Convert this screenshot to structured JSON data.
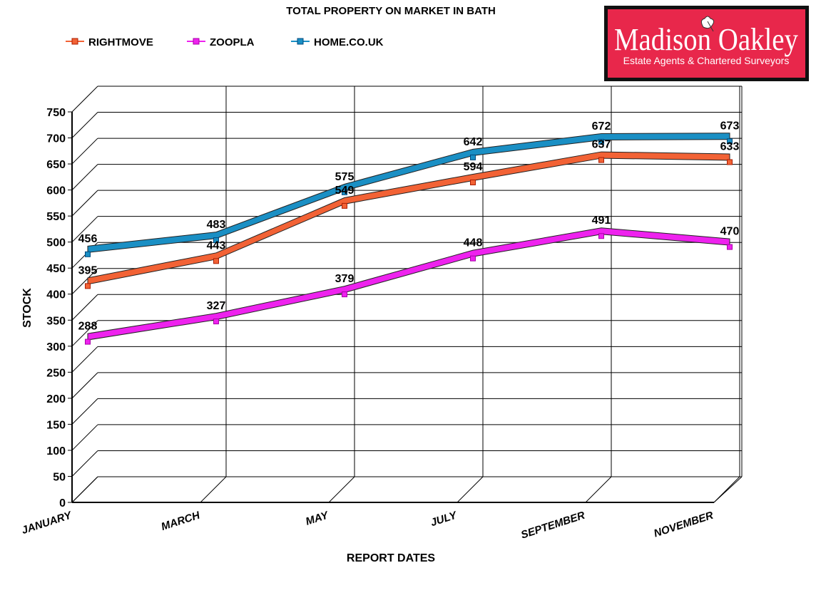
{
  "logo": {
    "name": "Madison Oakley",
    "tagline": "Estate Agents & Chartered Surveyors",
    "colors": {
      "background": "#e8274b",
      "border": "#111111"
    }
  },
  "chart_data": {
    "type": "line",
    "title": "TOTAL PROPERTY ON MARKET IN BATH",
    "xlabel": "REPORT DATES",
    "ylabel": "STOCK",
    "categories": [
      "JANUARY",
      "MARCH",
      "MAY",
      "JULY",
      "SEPTEMBER",
      "NOVEMBER"
    ],
    "ylim": [
      0,
      750
    ],
    "yticks": [
      "0",
      "50",
      "100",
      "150",
      "200",
      "250",
      "300",
      "350",
      "400",
      "450",
      "500",
      "550",
      "600",
      "650",
      "700",
      "750"
    ],
    "grid": true,
    "legend_position": "top-left",
    "series": [
      {
        "name": "RIGHTMOVE",
        "values": [
          395,
          443,
          549,
          594,
          637,
          633
        ],
        "color": "#f26235"
      },
      {
        "name": "ZOOPLA",
        "values": [
          288,
          327,
          379,
          448,
          491,
          470
        ],
        "color": "#ee22ee"
      },
      {
        "name": "HOME.CO.UK",
        "values": [
          456,
          483,
          575,
          642,
          672,
          673
        ],
        "color": "#1a8fc4"
      }
    ]
  }
}
